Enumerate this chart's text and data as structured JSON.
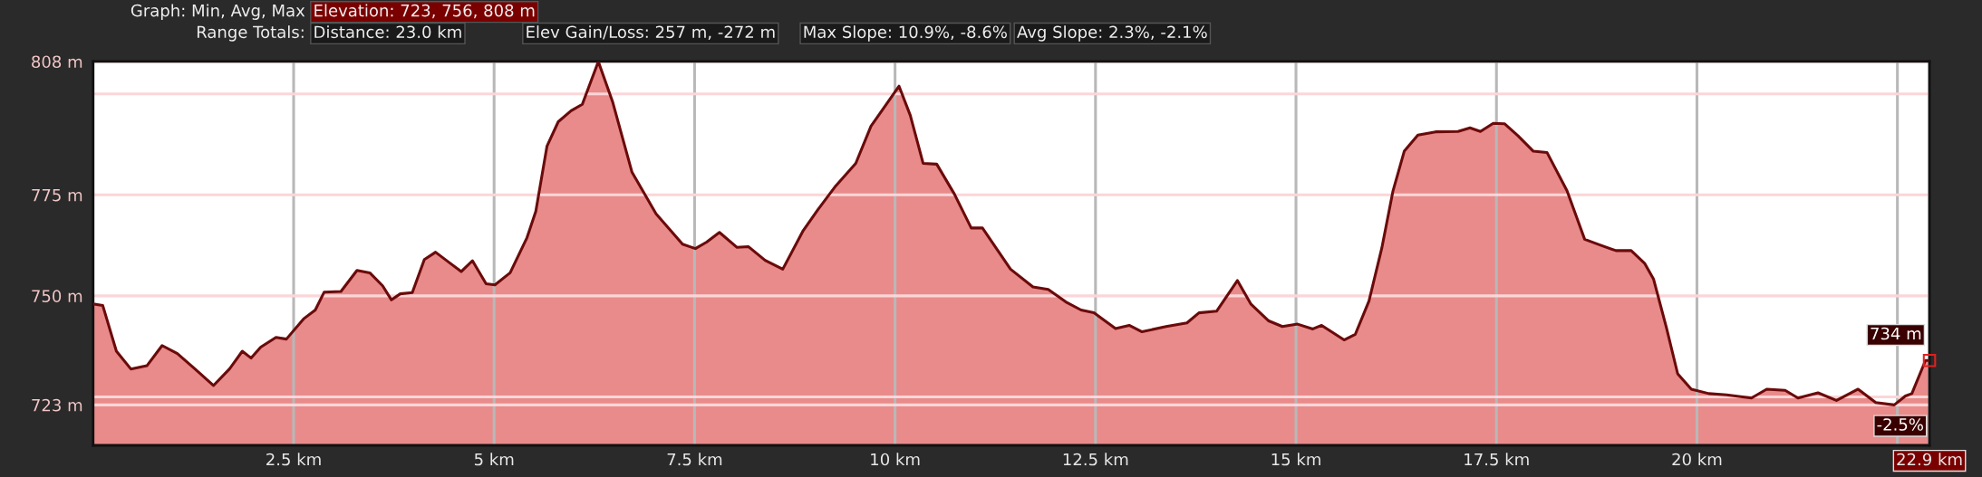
{
  "chart_data": {
    "type": "area",
    "x": [
      0,
      0.12,
      0.29,
      0.47,
      0.67,
      0.86,
      1.05,
      1.27,
      1.5,
      1.7,
      1.86,
      1.97,
      2.09,
      2.28,
      2.41,
      2.63,
      2.77,
      2.88,
      3.09,
      3.29,
      3.45,
      3.61,
      3.72,
      3.83,
      3.98,
      4.13,
      4.27,
      4.43,
      4.59,
      4.73,
      4.9,
      5.01,
      5.2,
      5.41,
      5.52,
      5.66,
      5.8,
      5.96,
      6.1,
      6.3,
      6.48,
      6.72,
      7.02,
      7.35,
      7.51,
      7.65,
      7.81,
      8.03,
      8.17,
      8.38,
      8.6,
      8.85,
      9.04,
      9.26,
      9.51,
      9.7,
      9.89,
      10.05,
      10.19,
      10.35,
      10.52,
      10.74,
      10.95,
      11.09,
      11.44,
      11.72,
      11.91,
      12.13,
      12.32,
      12.48,
      12.75,
      12.92,
      13.08,
      13.38,
      13.64,
      13.79,
      14.01,
      14.27,
      14.44,
      14.66,
      14.83,
      15.02,
      15.21,
      15.32,
      15.6,
      15.74,
      15.91,
      16.07,
      16.21,
      16.35,
      16.52,
      16.74,
      17.02,
      17.17,
      17.3,
      17.46,
      17.6,
      17.77,
      17.96,
      18.13,
      18.38,
      18.6,
      18.79,
      18.99,
      19.18,
      19.35,
      19.46,
      19.62,
      19.76,
      19.93,
      20.15,
      20.37,
      20.68,
      20.87,
      21.1,
      21.26,
      21.51,
      21.74,
      22.01,
      22.23,
      22.46,
      22.6,
      22.68,
      22.85,
      22.9
    ],
    "series": [
      {
        "color": "#6b0a0a",
        "values": [
          748,
          747.6,
          736.3,
          731.9,
          732.7,
          737.7,
          735.7,
          731.9,
          727.8,
          731.9,
          736.3,
          734.6,
          737.3,
          739.7,
          739.3,
          744.4,
          746.5,
          750.9,
          751.1,
          756.3,
          755.7,
          752.5,
          749,
          750.5,
          750.8,
          759,
          760.8,
          758.4,
          756,
          758.7,
          753,
          752.7,
          755.7,
          764.4,
          770.9,
          787.1,
          793.1,
          795.8,
          797.4,
          808,
          797.9,
          780.6,
          770.3,
          762.8,
          761.7,
          763.3,
          765.7,
          762,
          762.2,
          758.8,
          756.6,
          766,
          771.4,
          777.2,
          782.8,
          792,
          797.4,
          801.9,
          794.7,
          782.8,
          782.6,
          775.2,
          766.8,
          766.8,
          756.6,
          752.2,
          751.6,
          748.5,
          746.5,
          745.8,
          741.9,
          742.7,
          741.1,
          742.4,
          743.3,
          745.8,
          746.2,
          753.8,
          747.9,
          743.8,
          742.4,
          743,
          741.8,
          742.7,
          739.1,
          740.5,
          748.7,
          761.8,
          776,
          785.8,
          789.8,
          790.6,
          790.7,
          791.6,
          790.7,
          792.7,
          792.6,
          789.6,
          785.8,
          785.5,
          776,
          764,
          762.6,
          761.2,
          761.2,
          758,
          754.1,
          742.1,
          730.7,
          726.9,
          725.8,
          725.5,
          724.7,
          726.9,
          726.6,
          724.7,
          726,
          724.1,
          726.9,
          723.6,
          723,
          725.2,
          725.8,
          734,
          734
        ]
      }
    ],
    "xlim": [
      0,
      22.9
    ],
    "xticks": [
      {
        "value": 2.5,
        "label": "2.5 km"
      },
      {
        "value": 5,
        "label": "5 km"
      },
      {
        "value": 7.5,
        "label": "7.5 km"
      },
      {
        "value": 10,
        "label": "10 km"
      },
      {
        "value": 12.5,
        "label": "12.5 km"
      },
      {
        "value": 15,
        "label": "15 km"
      },
      {
        "value": 17.5,
        "label": "17.5 km"
      },
      {
        "value": 20,
        "label": "20 km"
      },
      {
        "value": 22.5,
        "label": null
      },
      {
        "value": 22.9,
        "label": "22.9 km"
      }
    ],
    "ylim": [
      713,
      808
    ],
    "yticks": [
      {
        "value": 723,
        "label": "723 m"
      },
      {
        "value": 725,
        "label": null
      },
      {
        "value": 750,
        "label": "750 m"
      },
      {
        "value": 775,
        "label": "775 m"
      },
      {
        "value": 800,
        "label": null
      },
      {
        "value": 808,
        "label": "808 m"
      }
    ],
    "grid": true,
    "annotations": [
      "Graph: Min, Avg, Max",
      "Elevation: 723, 756, 808 m",
      "Range Totals:",
      "Distance: 23.0 km",
      "Elev Gain/Loss: 257 m, -272 m",
      "Max Slope: 10.9%, -8.6%",
      "Avg Slope: 2.3%, -2.1%",
      {
        "text": "734 m",
        "x": 22.9,
        "y": 734
      },
      "-2.5%"
    ]
  }
}
